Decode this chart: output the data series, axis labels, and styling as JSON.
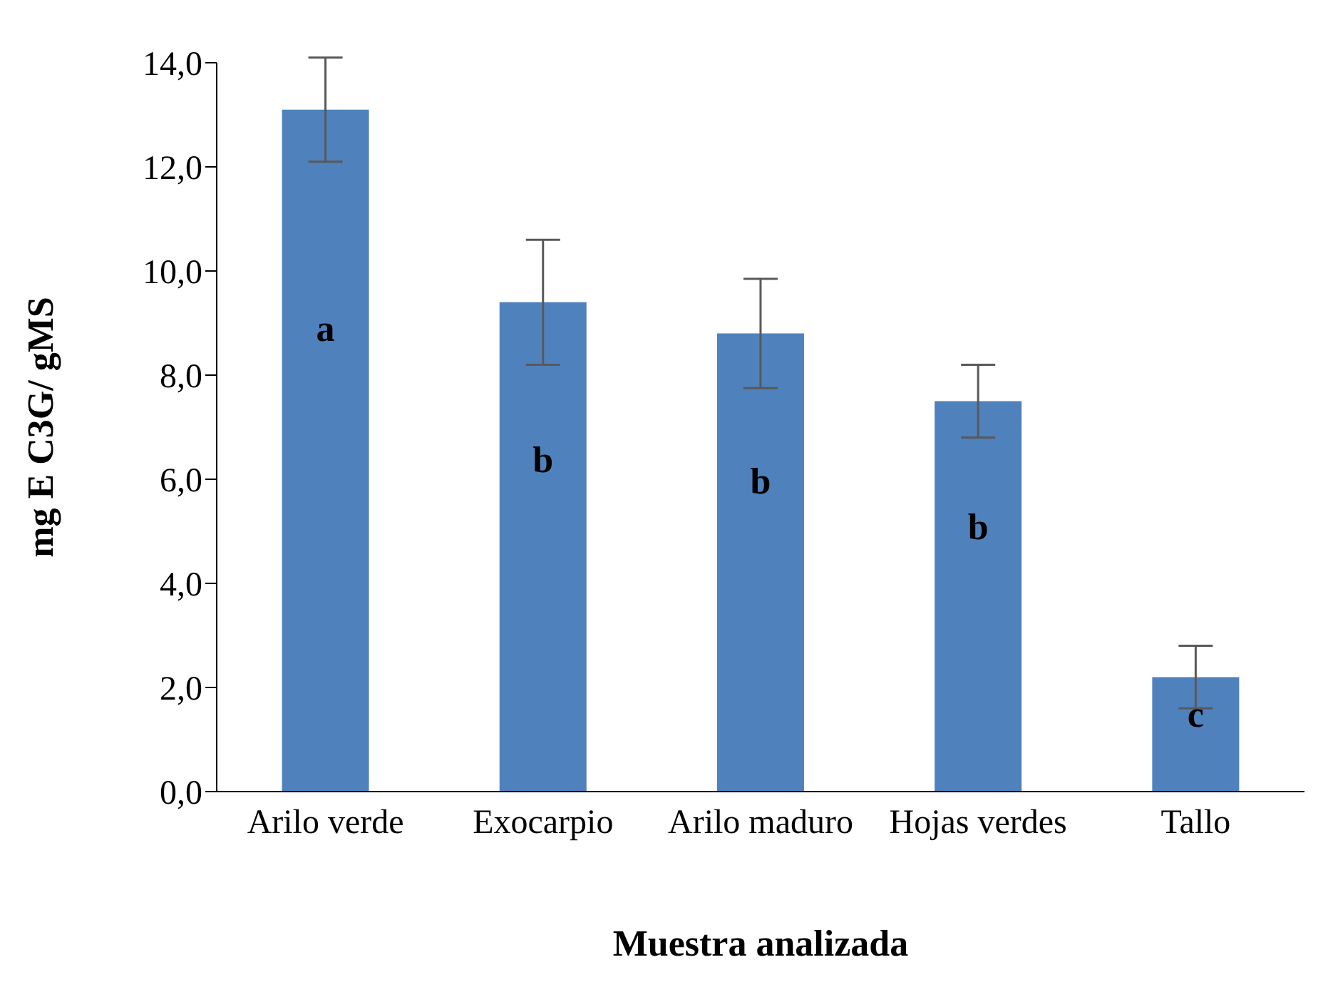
{
  "chart_data": {
    "type": "bar",
    "xlabel": "Muestra analizada",
    "ylabel": "mg E C3G/ gMS",
    "categories": [
      "Arilo verde",
      "Exocarpio",
      "Arilo maduro",
      "Hojas verdes",
      "Tallo"
    ],
    "values": [
      13.1,
      9.4,
      8.8,
      7.5,
      2.2
    ],
    "errors": [
      1.0,
      1.2,
      1.05,
      0.7,
      0.6
    ],
    "color": "#4f81bd",
    "ylim": [
      0,
      14
    ],
    "yticks": [
      {
        "value": 0,
        "label": "0,0"
      },
      {
        "value": 2,
        "label": "2,0"
      },
      {
        "value": 4,
        "label": "4,0"
      },
      {
        "value": 6,
        "label": "6,0"
      },
      {
        "value": 8,
        "label": "8,0"
      },
      {
        "value": 10,
        "label": "10,0"
      },
      {
        "value": 12,
        "label": "12,0"
      },
      {
        "value": 14,
        "label": "14,0"
      }
    ],
    "grid": false,
    "legend": false,
    "annotations": [
      "a",
      "b",
      "b",
      "b",
      "c"
    ]
  }
}
